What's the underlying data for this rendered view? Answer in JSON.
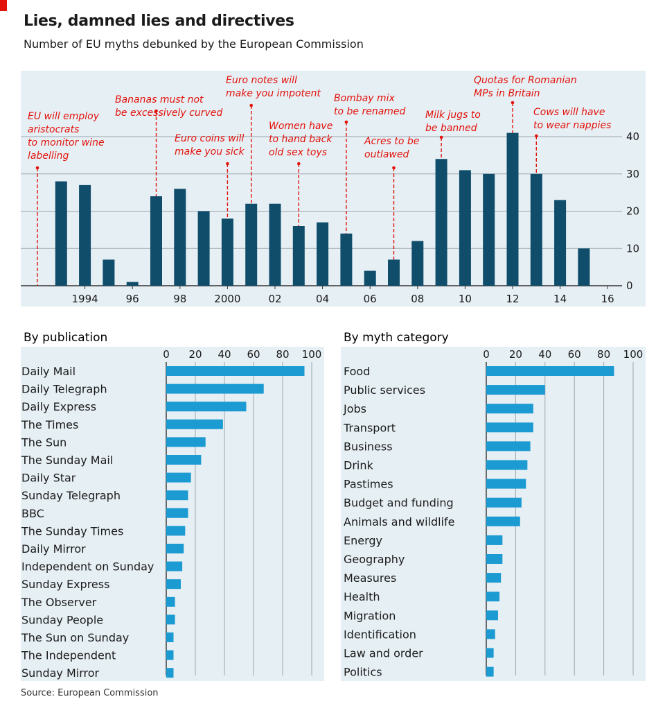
{
  "header": {
    "title": "Lies, damned lies and directives",
    "subtitle": "Number of EU myths debunked by the European Commission"
  },
  "source": "Source: European Commission",
  "colors": {
    "dark_bar": "#0f4d6b",
    "light_bar": "#1b9bd1",
    "annotation": "#e3120b",
    "panel": "#e6eff4"
  },
  "chart_data": [
    {
      "type": "bar",
      "title": "",
      "x": [
        1992,
        1993,
        1994,
        1995,
        1996,
        1997,
        1998,
        1999,
        2000,
        2001,
        2002,
        2003,
        2004,
        2005,
        2006,
        2007,
        2008,
        2009,
        2010,
        2011,
        2012,
        2013,
        2014,
        2015,
        2016
      ],
      "values": [
        0,
        28,
        27,
        7,
        1,
        24,
        26,
        20,
        18,
        22,
        22,
        16,
        17,
        14,
        4,
        7,
        12,
        34,
        31,
        30,
        41,
        30,
        23,
        10,
        0
      ],
      "x_tick_labels": [
        {
          "x": 1994,
          "label": "1994"
        },
        {
          "x": 1996,
          "label": "96"
        },
        {
          "x": 1998,
          "label": "98"
        },
        {
          "x": 2000,
          "label": "2000"
        },
        {
          "x": 2002,
          "label": "02"
        },
        {
          "x": 2004,
          "label": "04"
        },
        {
          "x": 2006,
          "label": "06"
        },
        {
          "x": 2008,
          "label": "08"
        },
        {
          "x": 2010,
          "label": "10"
        },
        {
          "x": 2012,
          "label": "12"
        },
        {
          "x": 2014,
          "label": "14"
        },
        {
          "x": 2016,
          "label": "16"
        }
      ],
      "y_ticks": [
        0,
        10,
        20,
        30,
        40
      ],
      "ylim": [
        0,
        45
      ],
      "y_axis_side": "right",
      "grid": true,
      "annotations": [
        {
          "x": 1992,
          "lines": [
            "EU will employ",
            "aristocrats",
            "to monitor wine",
            "labelling"
          ]
        },
        {
          "x": 1997,
          "lines": [
            "Bananas must not",
            "be excessively curved"
          ]
        },
        {
          "x": 2000,
          "lines": [
            "Euro coins will",
            "make you sick"
          ]
        },
        {
          "x": 2001,
          "lines": [
            "Euro notes will",
            "make you impotent"
          ]
        },
        {
          "x": 2003,
          "lines": [
            "Women have",
            "to hand back",
            "old sex toys"
          ]
        },
        {
          "x": 2005,
          "lines": [
            "Bombay mix",
            "to be renamed"
          ]
        },
        {
          "x": 2007,
          "lines": [
            "Acres to be",
            "outlawed"
          ]
        },
        {
          "x": 2009,
          "lines": [
            "Milk jugs to",
            "be banned"
          ]
        },
        {
          "x": 2012,
          "lines": [
            "Quotas for Romanian",
            "MPs in Britain"
          ]
        },
        {
          "x": 2013,
          "lines": [
            "Cows will have",
            "to wear nappies"
          ]
        }
      ]
    },
    {
      "type": "bar",
      "orientation": "horizontal",
      "title": "By publication",
      "categories": [
        "Daily Mail",
        "Daily Telegraph",
        "Daily Express",
        "The Times",
        "The Sun",
        "The Sunday Mail",
        "Daily Star",
        "Sunday Telegraph",
        "BBC",
        "The Sunday Times",
        "Daily Mirror",
        "Independent on Sunday",
        "Sunday Express",
        "The Observer",
        "Sunday People",
        "The Sun on Sunday",
        "The Independent",
        "Sunday Mirror"
      ],
      "values": [
        95,
        67,
        55,
        39,
        27,
        24,
        17,
        15,
        15,
        13,
        12,
        11,
        10,
        6,
        6,
        5,
        5,
        5
      ],
      "x_ticks": [
        0,
        20,
        40,
        60,
        80,
        100
      ],
      "xlim": [
        0,
        100
      ],
      "axis_side": "top"
    },
    {
      "type": "bar",
      "orientation": "horizontal",
      "title": "By myth category",
      "categories": [
        "Food",
        "Public services",
        "Jobs",
        "Transport",
        "Business",
        "Drink",
        "Pastimes",
        "Budget and funding",
        "Animals and wildlife",
        "Energy",
        "Geography",
        "Measures",
        "Health",
        "Migration",
        "Identification",
        "Law and order",
        "Politics"
      ],
      "values": [
        87,
        40,
        32,
        32,
        30,
        28,
        27,
        24,
        23,
        11,
        11,
        10,
        9,
        8,
        6,
        5,
        5
      ],
      "x_ticks": [
        0,
        20,
        40,
        60,
        80,
        100
      ],
      "xlim": [
        0,
        100
      ],
      "axis_side": "top"
    }
  ]
}
